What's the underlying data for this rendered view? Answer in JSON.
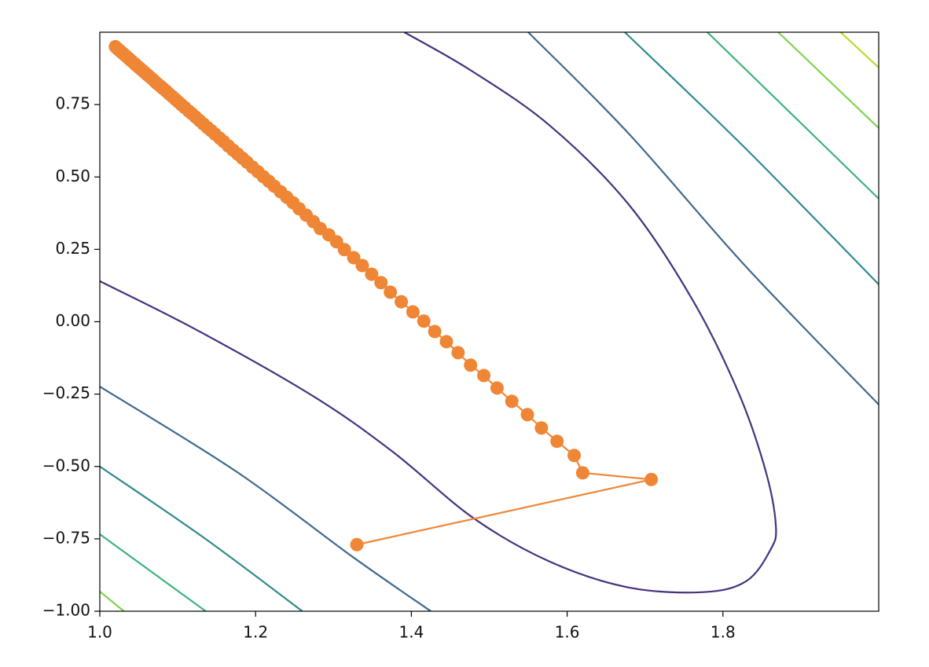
{
  "chart_data": {
    "type": "line",
    "xlim": [
      1.0,
      2.0
    ],
    "ylim": [
      -1.0,
      1.0
    ],
    "xticks": [
      {
        "value": 1.0,
        "label": "1.0"
      },
      1.2,
      1.4,
      1.6,
      1.8
    ],
    "yticks": [
      {
        "value": -1.0,
        "label": "−1.00"
      },
      {
        "value": -0.75,
        "label": "−0.75"
      },
      {
        "value": -0.5,
        "label": "−0.50"
      },
      {
        "value": -0.25,
        "label": "−0.25"
      },
      {
        "value": 0.0,
        "label": "0.00"
      },
      {
        "value": 0.25,
        "label": "0.25"
      },
      {
        "value": 0.5,
        "label": "0.50"
      },
      {
        "value": 0.75,
        "label": "0.75"
      }
    ],
    "contours": [
      {
        "color": "#46327e",
        "x": [
          1.0,
          1.124,
          1.275,
          1.376,
          1.48,
          1.578,
          1.679,
          1.775,
          1.83,
          1.861,
          1.868,
          1.855,
          1.82,
          1.76,
          1.679,
          1.578,
          1.477,
          1.391
        ],
        "y": [
          0.14,
          -0.028,
          -0.259,
          -0.449,
          -0.679,
          -0.829,
          -0.918,
          -0.934,
          -0.896,
          -0.788,
          -0.706,
          -0.517,
          -0.245,
          0.08,
          0.405,
          0.677,
          0.867,
          1.0
        ]
      },
      {
        "color": "#3e6a8e",
        "x": [
          1.0,
          1.175,
          1.326,
          1.425,
          null,
          1.55,
          1.679,
          1.83,
          2.0
        ],
        "y": [
          -0.224,
          -0.517,
          -0.815,
          -1.0,
          null,
          1.0,
          0.65,
          0.189,
          -0.286
        ]
      },
      {
        "color": "#2e8a8c",
        "x": [
          1.0,
          1.134,
          1.26,
          null,
          1.674,
          1.83,
          2.0
        ],
        "y": [
          -0.5,
          -0.747,
          -1.0,
          null,
          1.0,
          0.596,
          0.129
        ]
      },
      {
        "color": "#3db37a",
        "x": [
          1.0,
          1.136,
          null,
          1.78,
          2.0
        ],
        "y": [
          -0.734,
          -1.0,
          null,
          1.0,
          0.425
        ]
      },
      {
        "color": "#7ed34f",
        "x": [
          1.0,
          1.031,
          null,
          1.871,
          2.0
        ],
        "y": [
          -0.932,
          -1.0,
          null,
          1.0,
          0.669
        ]
      },
      {
        "color": "#b5de2b",
        "x": [
          1.951,
          2.0
        ],
        "y": [
          1.0,
          0.878
        ]
      }
    ],
    "series": [
      {
        "color": "#ef8636",
        "x": [
          1.33,
          1.708,
          1.62,
          1.609,
          1.587,
          1.567,
          1.549,
          1.529,
          1.51,
          1.493,
          1.476,
          1.46,
          1.445,
          1.43,
          1.416,
          1.402,
          1.387,
          1.373,
          1.361,
          1.349,
          1.337,
          1.326,
          1.314,
          1.304,
          1.294,
          1.283,
          1.274,
          1.265,
          1.256,
          1.248,
          1.24,
          1.232,
          1.224,
          1.217,
          1.21,
          1.203,
          1.196,
          1.189,
          1.183,
          1.177,
          1.171,
          1.165,
          1.159,
          1.154,
          1.148,
          1.143,
          1.138,
          1.133,
          1.128,
          1.123,
          1.118,
          1.114,
          1.109,
          1.105,
          1.101,
          1.097,
          1.093,
          1.089,
          1.085,
          1.081,
          1.078,
          1.074,
          1.071,
          1.068,
          1.064,
          1.061,
          1.058,
          1.055,
          1.052,
          1.049,
          1.046,
          1.044,
          1.041,
          1.038,
          1.036,
          1.033,
          1.031,
          1.029,
          1.027,
          1.025,
          1.023,
          1.021,
          1.02
        ],
        "y": [
          -0.77,
          -0.545,
          -0.522,
          -0.462,
          -0.413,
          -0.367,
          -0.321,
          -0.275,
          -0.229,
          -0.186,
          -0.15,
          -0.107,
          -0.069,
          -0.034,
          0.002,
          0.034,
          0.069,
          0.102,
          0.135,
          0.164,
          0.194,
          0.221,
          0.249,
          0.276,
          0.3,
          0.322,
          0.346,
          0.368,
          0.39,
          0.411,
          0.43,
          0.449,
          0.468,
          0.485,
          0.501,
          0.518,
          0.534,
          0.551,
          0.565,
          0.579,
          0.593,
          0.607,
          0.622,
          0.634,
          0.648,
          0.66,
          0.671,
          0.683,
          0.695,
          0.707,
          0.719,
          0.728,
          0.74,
          0.749,
          0.759,
          0.768,
          0.778,
          0.787,
          0.797,
          0.806,
          0.813,
          0.822,
          0.829,
          0.837,
          0.846,
          0.853,
          0.86,
          0.867,
          0.874,
          0.881,
          0.888,
          0.893,
          0.9,
          0.907,
          0.912,
          0.919,
          0.924,
          0.928,
          0.933,
          0.938,
          0.942,
          0.947,
          0.95
        ]
      }
    ]
  }
}
